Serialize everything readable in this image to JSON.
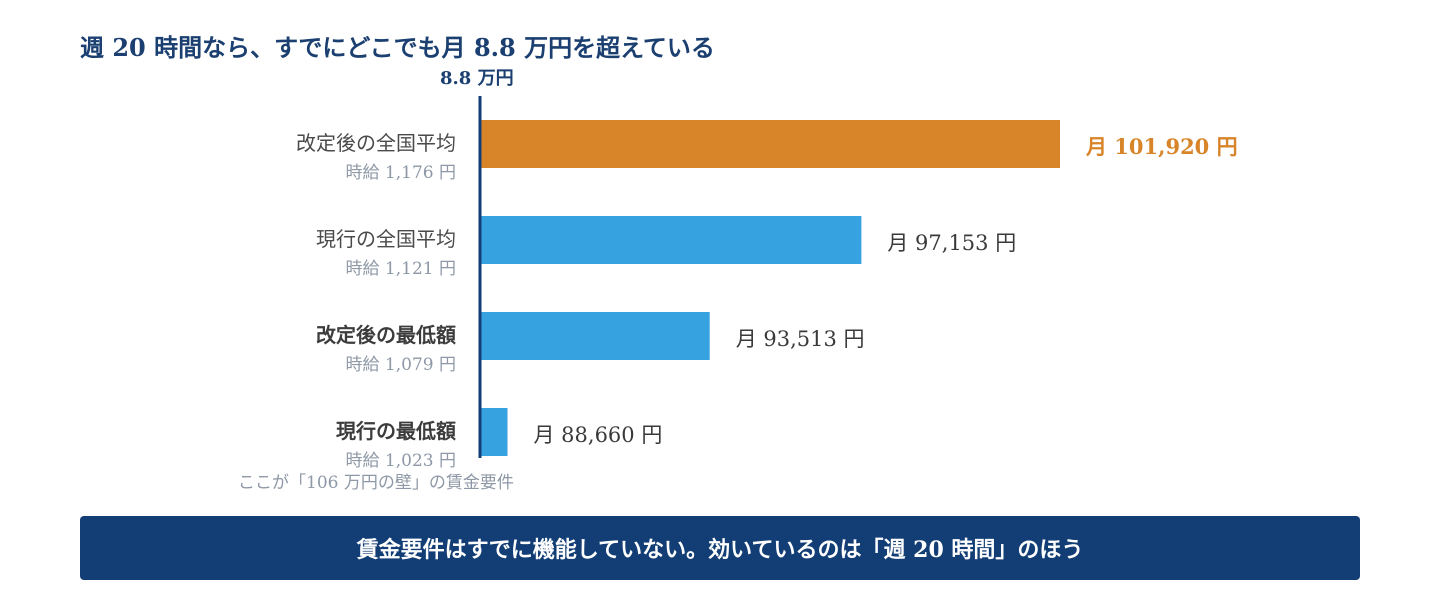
{
  "title": "週 20 時間なら、すでにどこでも月 8.8 万円を超えている",
  "reference_label": "8.8 万円",
  "note": "ここが「106 万円の壁」の賃金要件",
  "banner": "賃金要件はすでに機能していない。効いているのは「週 20 時間」のほう",
  "colors": {
    "highlight": "#d8852a",
    "bar": "#37a2e0",
    "axis": "#123e75",
    "title": "#1a3f70"
  },
  "chart_data": {
    "type": "bar",
    "orientation": "horizontal",
    "title": "週 20 時間なら、すでにどこでも月 8.8 万円を超えている",
    "reference_line": {
      "value": 88000,
      "label": "8.8 万円"
    },
    "categories": [
      "改定後の全国平均",
      "現行の全国平均",
      "改定後の最低額",
      "現行の最低額"
    ],
    "sublabels": [
      "時給 1,176 円",
      "時給 1,121 円",
      "時給 1,079 円",
      "時給 1,023 円"
    ],
    "values": [
      101920,
      97153,
      93513,
      88660
    ],
    "value_labels": [
      "月 101,920 円",
      "月 97,153 円",
      "月 93,513 円",
      "月 88,660 円"
    ],
    "highlight_index": 0,
    "bold_categories": [
      2,
      3
    ]
  }
}
